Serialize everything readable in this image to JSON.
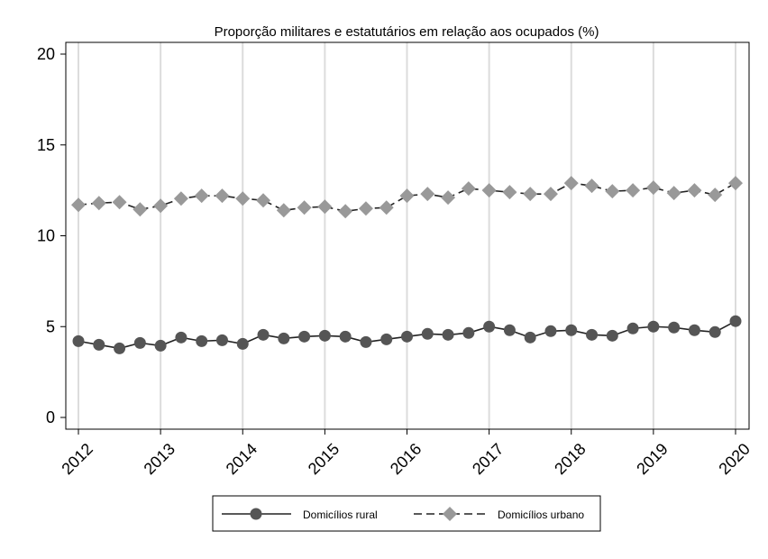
{
  "chart_data": {
    "type": "line",
    "title": "Proporção militares e estatutários em relação aos ocupados (%)",
    "xlabel": "",
    "ylabel": "",
    "x_ticks": [
      "2012",
      "2013",
      "2014",
      "2015",
      "2016",
      "2017",
      "2018",
      "2019",
      "2020"
    ],
    "y_ticks": [
      "0",
      "5",
      "10",
      "15",
      "20"
    ],
    "xlim": [
      2012,
      2020
    ],
    "ylim": [
      0,
      20
    ],
    "grid": "vertical",
    "legend_position": "bottom",
    "x": [
      2012.0,
      2012.25,
      2012.5,
      2012.75,
      2013.0,
      2013.25,
      2013.5,
      2013.75,
      2014.0,
      2014.25,
      2014.5,
      2014.75,
      2015.0,
      2015.25,
      2015.5,
      2015.75,
      2016.0,
      2016.25,
      2016.5,
      2016.75,
      2017.0,
      2017.25,
      2017.5,
      2017.75,
      2018.0,
      2018.25,
      2018.5,
      2018.75,
      2019.0,
      2019.25,
      2019.5,
      2019.75,
      2020.0
    ],
    "series": [
      {
        "name": "Domicílios rural",
        "style": "solid",
        "marker": "circle",
        "color": "#555555",
        "values": [
          4.2,
          4.0,
          3.8,
          4.1,
          3.95,
          4.4,
          4.2,
          4.25,
          4.05,
          4.55,
          4.35,
          4.45,
          4.5,
          4.45,
          4.15,
          4.3,
          4.45,
          4.6,
          4.55,
          4.65,
          5.0,
          4.8,
          4.4,
          4.75,
          4.8,
          4.55,
          4.5,
          4.9,
          5.0,
          4.95,
          4.8,
          4.7,
          5.3
        ]
      },
      {
        "name": "Domicílios urbano",
        "style": "dashed",
        "marker": "diamond",
        "color": "#999999",
        "values": [
          11.7,
          11.8,
          11.85,
          11.45,
          11.65,
          12.05,
          12.2,
          12.2,
          12.05,
          11.95,
          11.4,
          11.55,
          11.6,
          11.35,
          11.5,
          11.55,
          12.2,
          12.3,
          12.1,
          12.6,
          12.5,
          12.4,
          12.3,
          12.3,
          12.9,
          12.75,
          12.45,
          12.5,
          12.65,
          12.35,
          12.5,
          12.25,
          12.9
        ]
      }
    ]
  }
}
